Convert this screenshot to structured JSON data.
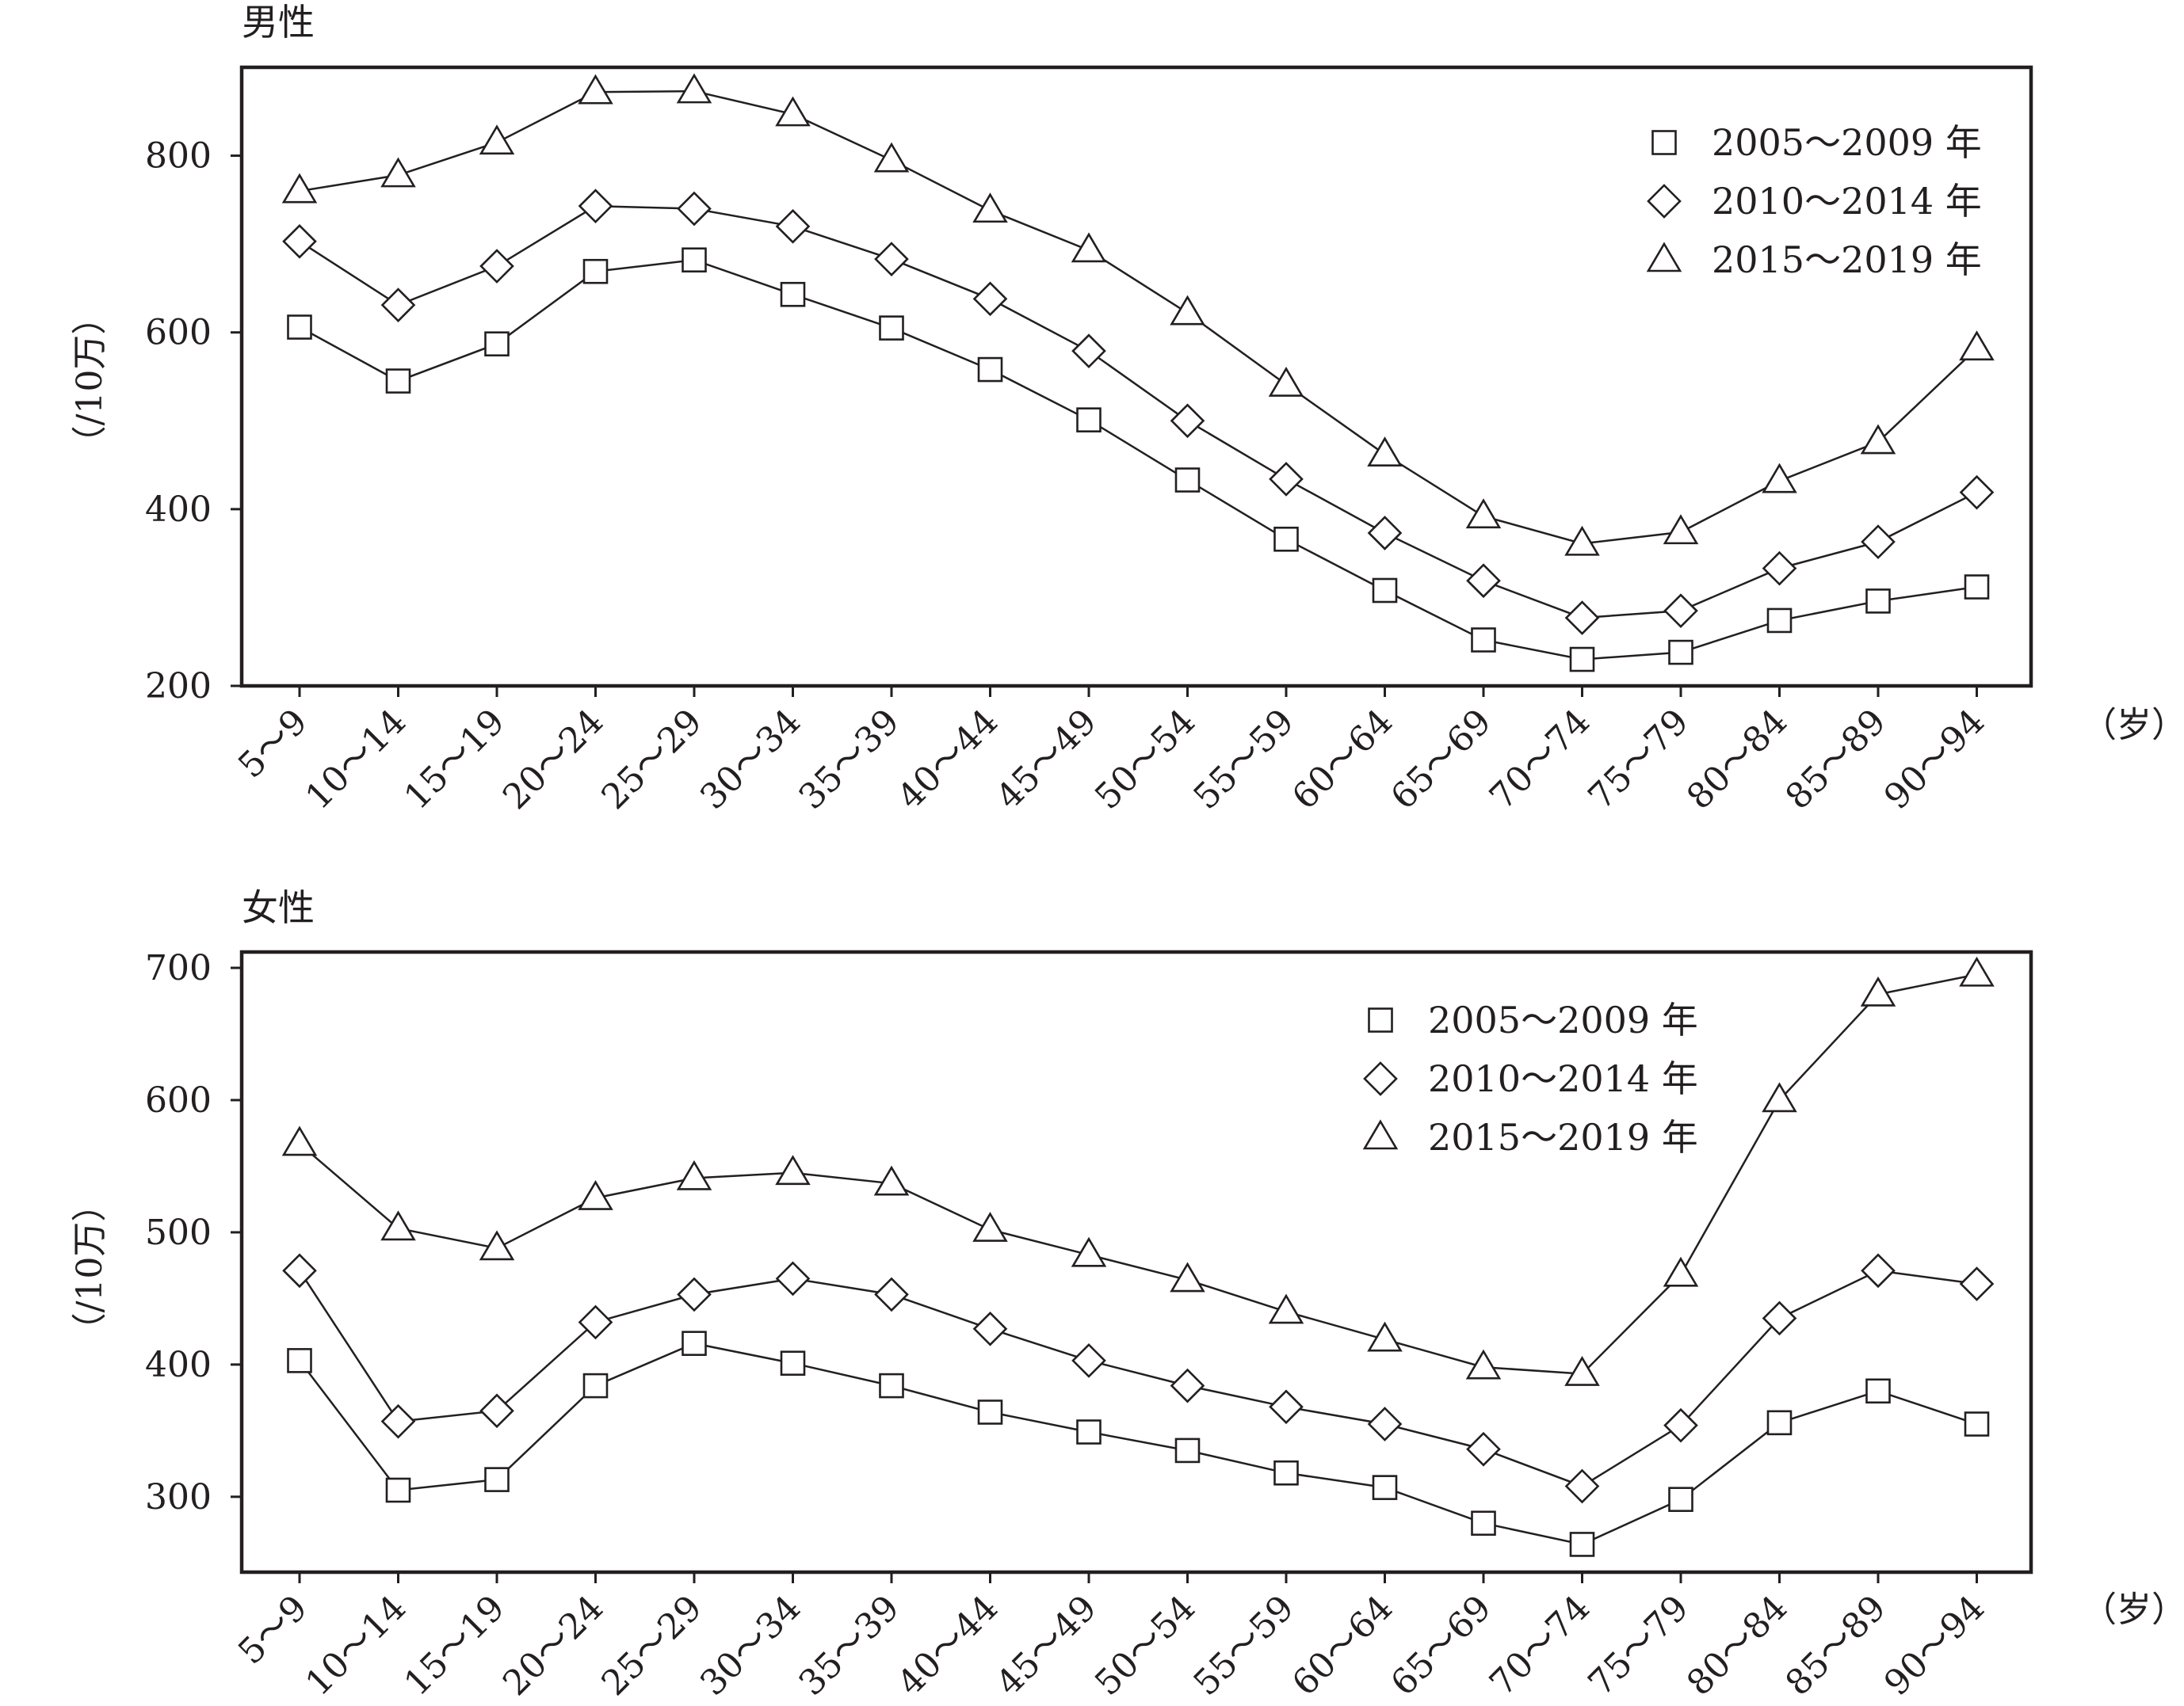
{
  "chart_data": [
    {
      "type": "line",
      "title": "男性",
      "xlabel": "（岁）",
      "ylabel": "（/10万）",
      "categories": [
        "5～9",
        "10～14",
        "15～19",
        "20～24",
        "25～29",
        "30～34",
        "35～39",
        "40～44",
        "45～49",
        "50～54",
        "55～59",
        "60～64",
        "65～69",
        "70～74",
        "75～79",
        "80～84",
        "85～89",
        "90～94"
      ],
      "ylim": [
        200,
        900
      ],
      "yticks": [
        200,
        400,
        600,
        800
      ],
      "grid": false,
      "legend_position": "top-right",
      "series": [
        {
          "name": "2005～2009 年",
          "marker": "square",
          "values": [
            606,
            545,
            587,
            669,
            682,
            643,
            605,
            558,
            501,
            433,
            366,
            308,
            252,
            230,
            238,
            274,
            296,
            312
          ]
        },
        {
          "name": "2010～2014 年",
          "marker": "diamond",
          "values": [
            703,
            631,
            675,
            743,
            740,
            720,
            683,
            638,
            579,
            500,
            434,
            373,
            319,
            277,
            285,
            333,
            363,
            419
          ]
        },
        {
          "name": "2015～2019 年",
          "marker": "triangle",
          "values": [
            760,
            778,
            815,
            872,
            873,
            847,
            795,
            738,
            693,
            622,
            541,
            462,
            392,
            361,
            374,
            432,
            476,
            582
          ]
        }
      ]
    },
    {
      "type": "line",
      "title": "女性",
      "xlabel": "（岁）",
      "ylabel": "（/10万）",
      "categories": [
        "5～9",
        "10～14",
        "15～19",
        "20～24",
        "25～29",
        "30～34",
        "35～39",
        "40～44",
        "45～49",
        "50～54",
        "55～59",
        "60～64",
        "65～69",
        "70～74",
        "75～79",
        "80～84",
        "85～89",
        "90～94"
      ],
      "ylim": [
        243,
        712
      ],
      "yticks": [
        300,
        400,
        500,
        600,
        700
      ],
      "grid": false,
      "legend_position": "top-right",
      "series": [
        {
          "name": "2005～2009 年",
          "marker": "square",
          "values": [
            403,
            305,
            313,
            384,
            416,
            401,
            384,
            364,
            349,
            335,
            318,
            307,
            280,
            264,
            298,
            356,
            380,
            355
          ]
        },
        {
          "name": "2010～2014 年",
          "marker": "diamond",
          "values": [
            471,
            357,
            365,
            432,
            453,
            465,
            453,
            427,
            403,
            384,
            368,
            355,
            336,
            308,
            354,
            435,
            471,
            461
          ]
        },
        {
          "name": "2015～2019 年",
          "marker": "triangle",
          "values": [
            567,
            503,
            488,
            526,
            541,
            545,
            537,
            502,
            483,
            464,
            440,
            419,
            398,
            393,
            468,
            600,
            680,
            695
          ]
        }
      ]
    }
  ]
}
